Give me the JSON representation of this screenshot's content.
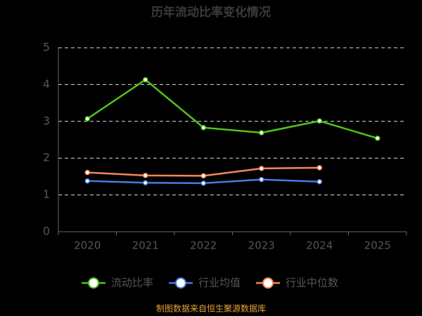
{
  "chart_data": {
    "type": "line",
    "title": "历年流动比率变化情况",
    "categories": [
      "2020",
      "2021",
      "2022",
      "2023",
      "2024",
      "2025"
    ],
    "series": [
      {
        "name": "流动比率",
        "color": "#52c41a",
        "values": [
          3.07,
          4.13,
          2.83,
          2.69,
          3.01,
          2.54
        ]
      },
      {
        "name": "行业均值",
        "color": "#4a7be0",
        "values": [
          1.38,
          1.33,
          1.32,
          1.42,
          1.36,
          null
        ]
      },
      {
        "name": "行业中位数",
        "color": "#f5875a",
        "values": [
          1.61,
          1.53,
          1.52,
          1.72,
          1.74,
          null
        ]
      }
    ],
    "ylim": [
      0,
      5
    ],
    "yticks": [
      0,
      1,
      2,
      3,
      4,
      5
    ],
    "grid": true,
    "legend": "bottom",
    "source": "制图数据来自恒生聚源数据库"
  }
}
